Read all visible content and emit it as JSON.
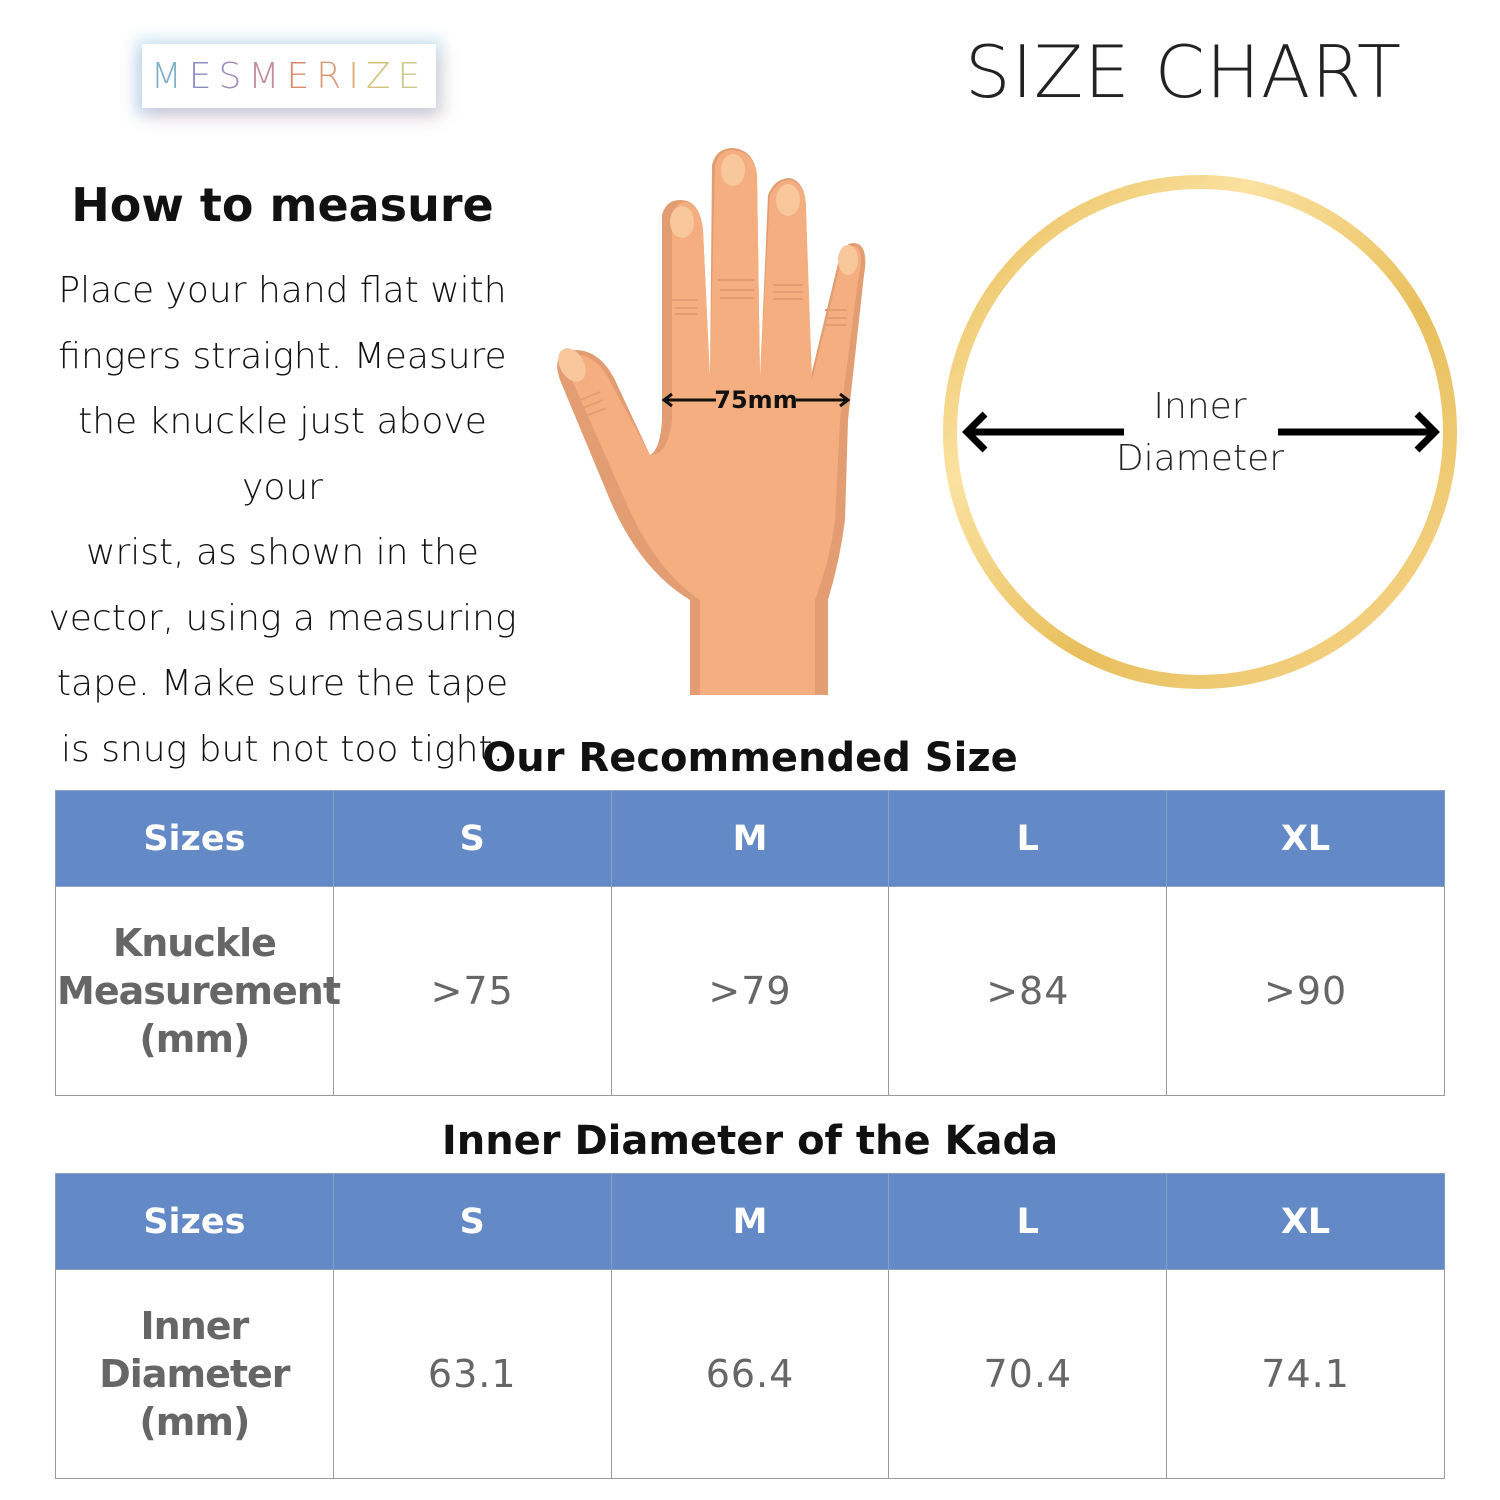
{
  "brand": {
    "logo_text": "MESMERIZE",
    "logo_colors": [
      "#7fb0c8",
      "#8c8cc0",
      "#9d8cc0",
      "#c48aa0",
      "#d9886c",
      "#d99a78",
      "#d8ad70",
      "#d0c27c",
      "#c9c98c"
    ]
  },
  "header": {
    "title": "SIZE CHART"
  },
  "how_to": {
    "heading": "How to measure",
    "lines": [
      "Place your hand flat with",
      "fingers straight. Measure",
      "the knuckle just above your",
      "wrist, as shown in the",
      "vector, using a measuring",
      "tape. Make sure the tape",
      "is snug but not too tight."
    ]
  },
  "hand_diagram": {
    "measurement_label": "75mm",
    "skin_color": "#f5ae80",
    "shadow_color": "#e29e72"
  },
  "ring_diagram": {
    "label_line1": "Inner",
    "label_line2": "Diameter",
    "ring_color": "#e8c060"
  },
  "table1": {
    "title": "Our Recommended Size",
    "headers": [
      "Sizes",
      "S",
      "M",
      "L",
      "XL"
    ],
    "row_label": [
      "Knuckle",
      "Measurement",
      "(mm)"
    ],
    "values": [
      ">75",
      ">79",
      ">84",
      ">90"
    ]
  },
  "table2": {
    "title": "Inner Diameter of the Kada",
    "headers": [
      "Sizes",
      "S",
      "M",
      "L",
      "XL"
    ],
    "row_label": [
      "Inner",
      "Diameter",
      "(mm)"
    ],
    "values": [
      "63.1",
      "66.4",
      "70.4",
      "74.1"
    ]
  },
  "colors": {
    "header_bg": "#6389c6",
    "cell_text": "#666666"
  }
}
